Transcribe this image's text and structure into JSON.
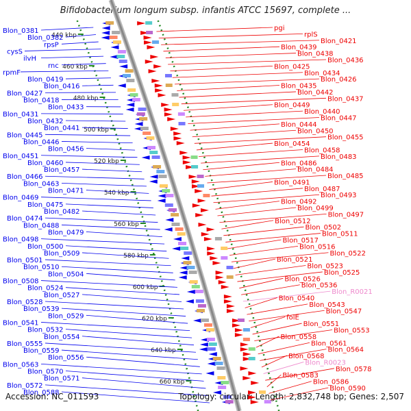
{
  "title": "Bifidobacterium longum subsp. infantis ATCC 15697, complete ...",
  "footer": {
    "accession": "Accession: NC_011593",
    "summary": "Topology: circular; Length: 2,832,748 bp; Genes: 2,507"
  },
  "colors": {
    "reverse_strand": "#0000ee",
    "forward_strand": "#ee0000",
    "rna": "#ee88cc",
    "backbone": "#888888",
    "tick_ring": "#228822"
  },
  "ticks": [
    "440 kbp",
    "460 kbp",
    "480 kbp",
    "500 kbp",
    "520 kbp",
    "540 kbp",
    "560 kbp",
    "580 kbp",
    "600 kbp",
    "620 kbp",
    "640 kbp",
    "660 kbp"
  ],
  "left_labels": [
    "Blon_0381",
    "Blon_0382",
    "rpsP",
    "cysS",
    "ilvH",
    "rnc",
    "rpmF",
    "Blon_0419",
    "Blon_0416",
    "Blon_0427",
    "Blon_0418",
    "Blon_0433",
    "Blon_0431",
    "Blon_0432",
    "Blon_0441",
    "Blon_0445",
    "Blon_0446",
    "Blon_0456",
    "Blon_0451",
    "Blon_0460",
    "Blon_0457",
    "Blon_0466",
    "Blon_0463",
    "Blon_0471",
    "Blon_0469",
    "Blon_0475",
    "Blon_0482",
    "Blon_0474",
    "Blon_0488",
    "Blon_0479",
    "Blon_0498",
    "Blon_0500",
    "Blon_0509",
    "Blon_0501",
    "Blon_0510",
    "Blon_0504",
    "Blon_0508",
    "Blon_0524",
    "Blon_0527",
    "Blon_0528",
    "Blon_0539",
    "Blon_0529",
    "Blon_0541",
    "Blon_0532",
    "Blon_0554",
    "Blon_0555",
    "Blon_0559",
    "Blon_0556",
    "Blon_0563",
    "Blon_0570",
    "Blon_0571",
    "Blon_0572",
    "Blon_0588"
  ],
  "right_labels": [
    "pgi",
    "rplS",
    "Blon_0421",
    "Blon_0439",
    "Blon_0438",
    "Blon_0436",
    "Blon_0425",
    "Blon_0434",
    "Blon_0426",
    "Blon_0435",
    "Blon_0442",
    "Blon_0437",
    "Blon_0449",
    "Blon_0440",
    "Blon_0447",
    "Blon_0444",
    "Blon_0450",
    "Blon_0455",
    "Blon_0454",
    "Blon_0458",
    "Blon_0483",
    "Blon_0486",
    "Blon_0484",
    "Blon_0485",
    "Blon_0491",
    "Blon_0487",
    "Blon_0493",
    "Blon_0492",
    "Blon_0499",
    "Blon_0497",
    "Blon_0512",
    "Blon_0502",
    "Blon_0511",
    "Blon_0517",
    "Blon_0516",
    "Blon_0522",
    "Blon_0521",
    "Blon_0523",
    "Blon_0525",
    "Blon_0526",
    "Blon_0536",
    "Blon_R0021",
    "Blon_0540",
    "Blon_0543",
    "Blon_0547",
    "folE",
    "Blon_0551",
    "Blon_0553",
    "Blon_0558",
    "Blon_0561",
    "Blon_0564",
    "Blon_0568",
    "Blon_R0023",
    "Blon_0578",
    "Blon_0583",
    "Blon_0586",
    "Blon_0590"
  ]
}
